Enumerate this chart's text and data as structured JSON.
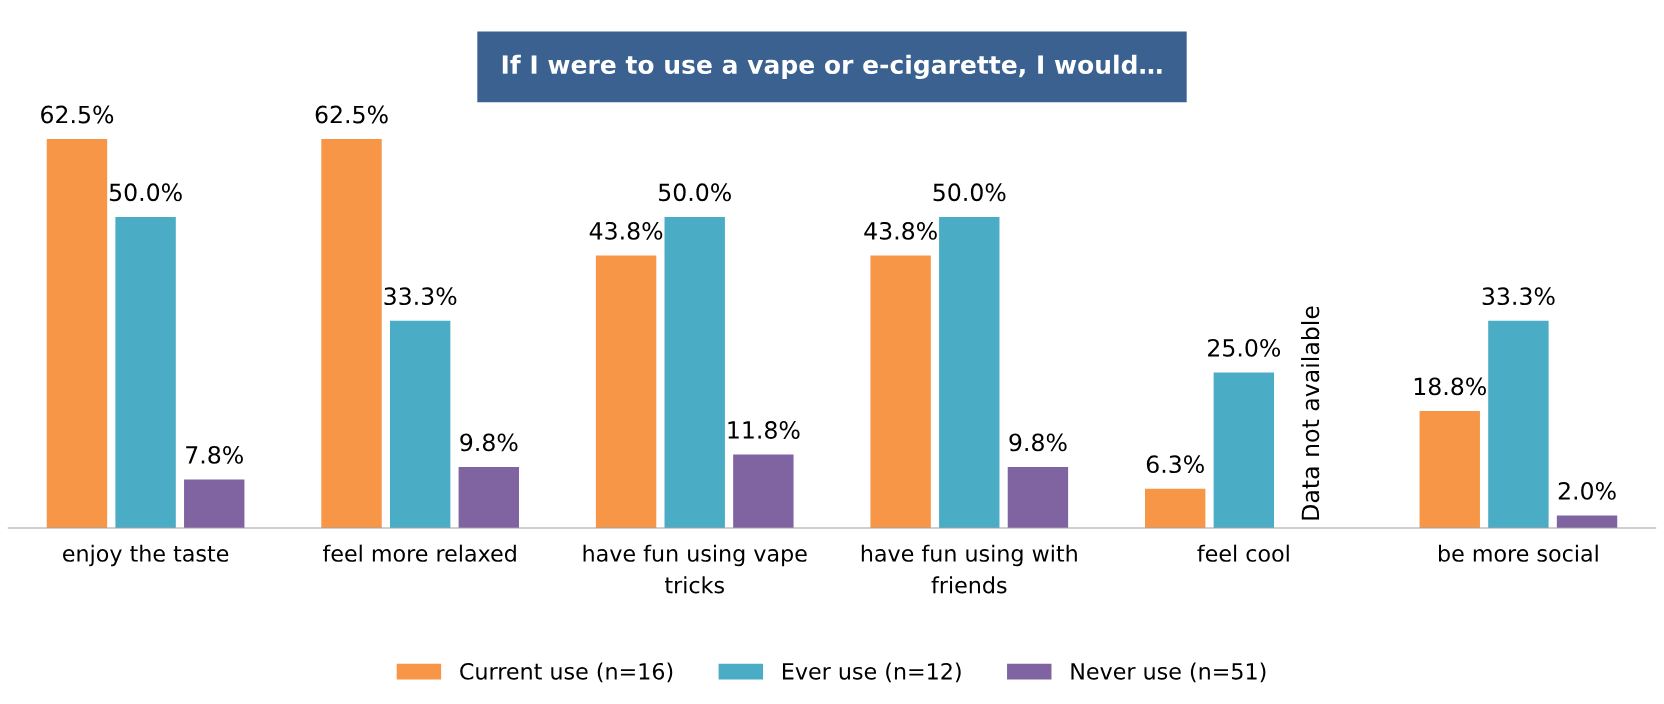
{
  "chart_data": {
    "type": "bar",
    "title": "If I were to use a vape or e-cigarette, I would…",
    "categories": [
      "enjoy the taste",
      "feel more relaxed",
      "have fun using vape tricks",
      "have fun using with friends",
      "feel cool",
      "be more social"
    ],
    "series": [
      {
        "name": "Current use (n=16)",
        "color": "#f79646",
        "values": [
          62.5,
          62.5,
          43.8,
          43.8,
          6.3,
          18.8
        ],
        "value_labels": [
          "62.5%",
          "62.5%",
          "43.8%",
          "43.8%",
          "6.3%",
          "18.8%"
        ]
      },
      {
        "name": "Ever use (n=12)",
        "color": "#4bacc6",
        "values": [
          50.0,
          33.3,
          50.0,
          50.0,
          25.0,
          33.3
        ],
        "value_labels": [
          "50.0%",
          "33.3%",
          "50.0%",
          "50.0%",
          "25.0%",
          "33.3%"
        ]
      },
      {
        "name": "Never use (n=51)",
        "color": "#8064a2",
        "values": [
          7.8,
          9.8,
          11.8,
          9.8,
          null,
          2.0
        ],
        "value_labels": [
          "7.8%",
          "9.8%",
          "11.8%",
          "9.8%",
          null,
          "2.0%"
        ]
      }
    ],
    "annotations": [
      "Data not available"
    ],
    "legend": "bottom",
    "grid": false
  }
}
